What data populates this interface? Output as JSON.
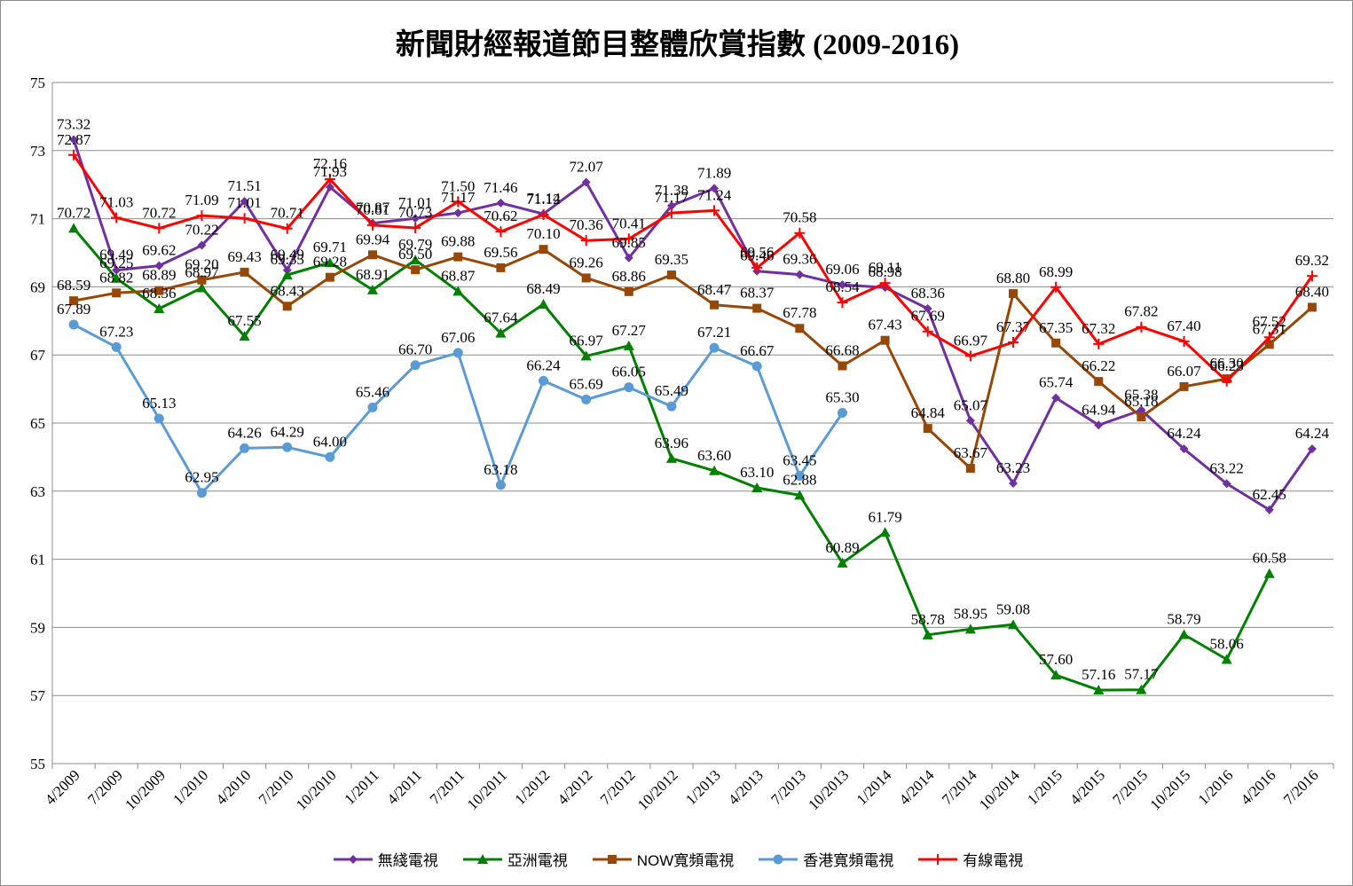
{
  "chart_data": {
    "type": "line",
    "title": "新聞財經報道節目整體欣賞指數 (2009-2016)",
    "xlabel": "",
    "ylabel": "",
    "ylim": [
      55,
      75
    ],
    "yticks": [
      55,
      57,
      59,
      61,
      63,
      65,
      67,
      69,
      71,
      73,
      75
    ],
    "grid": "horizontal",
    "legend_position": "bottom",
    "categories": [
      "4/2009",
      "7/2009",
      "10/2009",
      "1/2010",
      "4/2010",
      "7/2010",
      "10/2010",
      "1/2011",
      "4/2011",
      "7/2011",
      "10/2011",
      "1/2012",
      "4/2012",
      "7/2012",
      "10/2012",
      "1/2013",
      "4/2013",
      "7/2013",
      "10/2013",
      "1/2014",
      "4/2014",
      "7/2014",
      "10/2014",
      "1/2015",
      "4/2015",
      "7/2015",
      "10/2015",
      "1/2016",
      "4/2016",
      "7/2016"
    ],
    "series": [
      {
        "name": "無綫電視",
        "color": "#7030a0",
        "marker": "diamond",
        "values": [
          73.32,
          69.49,
          69.62,
          70.22,
          71.51,
          69.49,
          71.93,
          70.87,
          71.01,
          71.17,
          71.46,
          71.14,
          72.07,
          69.85,
          71.38,
          71.89,
          69.46,
          69.36,
          69.06,
          68.98,
          68.36,
          65.07,
          63.23,
          65.74,
          64.94,
          65.38,
          64.24,
          63.22,
          62.45,
          64.24
        ]
      },
      {
        "name": "亞洲電視",
        "color": "#008000",
        "marker": "triangle",
        "values": [
          70.72,
          69.25,
          68.36,
          68.97,
          67.55,
          69.35,
          69.71,
          68.91,
          69.79,
          68.87,
          67.64,
          68.49,
          66.97,
          67.27,
          63.96,
          63.6,
          63.1,
          62.88,
          60.89,
          61.79,
          58.78,
          58.95,
          59.08,
          57.6,
          57.16,
          57.17,
          58.79,
          58.06,
          60.58,
          null
        ]
      },
      {
        "name": "NOW寬頻電視",
        "color": "#974706",
        "marker": "square",
        "values": [
          68.59,
          68.82,
          68.89,
          69.2,
          69.43,
          68.43,
          69.28,
          69.94,
          69.5,
          69.88,
          69.56,
          70.1,
          69.26,
          68.86,
          69.35,
          68.47,
          68.37,
          67.78,
          66.68,
          67.43,
          64.84,
          63.67,
          68.8,
          67.35,
          66.22,
          65.18,
          66.07,
          66.3,
          67.31,
          68.4
        ]
      },
      {
        "name": "香港寬頻電視",
        "color": "#5b9bd5",
        "marker": "circle",
        "values": [
          67.89,
          67.23,
          65.13,
          62.95,
          64.26,
          64.29,
          64.0,
          65.46,
          66.7,
          67.06,
          63.18,
          66.24,
          65.69,
          66.05,
          65.49,
          67.21,
          66.67,
          63.45,
          65.3,
          null,
          null,
          null,
          null,
          null,
          null,
          null,
          null,
          null,
          null,
          null
        ]
      },
      {
        "name": "有線電視",
        "color": "#ff0000",
        "marker": "plus",
        "values": [
          72.87,
          71.03,
          70.72,
          71.09,
          71.01,
          70.71,
          72.16,
          70.81,
          70.73,
          71.5,
          70.62,
          71.12,
          70.36,
          70.41,
          71.17,
          71.24,
          69.56,
          70.58,
          68.54,
          69.11,
          67.69,
          66.97,
          67.37,
          68.99,
          67.32,
          67.82,
          67.4,
          66.23,
          67.52,
          69.32
        ]
      }
    ]
  }
}
